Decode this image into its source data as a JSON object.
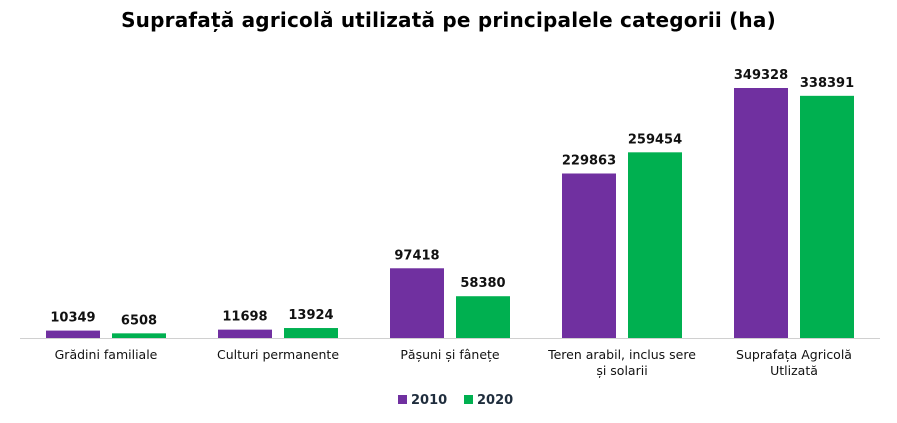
{
  "chart_data": {
    "type": "bar",
    "title": "Suprafață agricolă utilizată pe principalele categorii (ha)",
    "categories": [
      [
        "Grădini familiale"
      ],
      [
        "Culturi permanente"
      ],
      [
        "Pășuni și fânețe"
      ],
      [
        "Teren arabil, inclus sere",
        "și solarii"
      ],
      [
        "Suprafața Agricolă",
        "Utlizată"
      ]
    ],
    "series": [
      {
        "name": "2010",
        "color": "#7030a0",
        "values": [
          10349,
          11698,
          97418,
          229863,
          349328
        ]
      },
      {
        "name": "2020",
        "color": "#00b050",
        "values": [
          6508,
          13924,
          58380,
          259454,
          338391
        ]
      }
    ],
    "ylim": [
      0,
      349328
    ],
    "grid": false,
    "legend_position": "bottom"
  }
}
